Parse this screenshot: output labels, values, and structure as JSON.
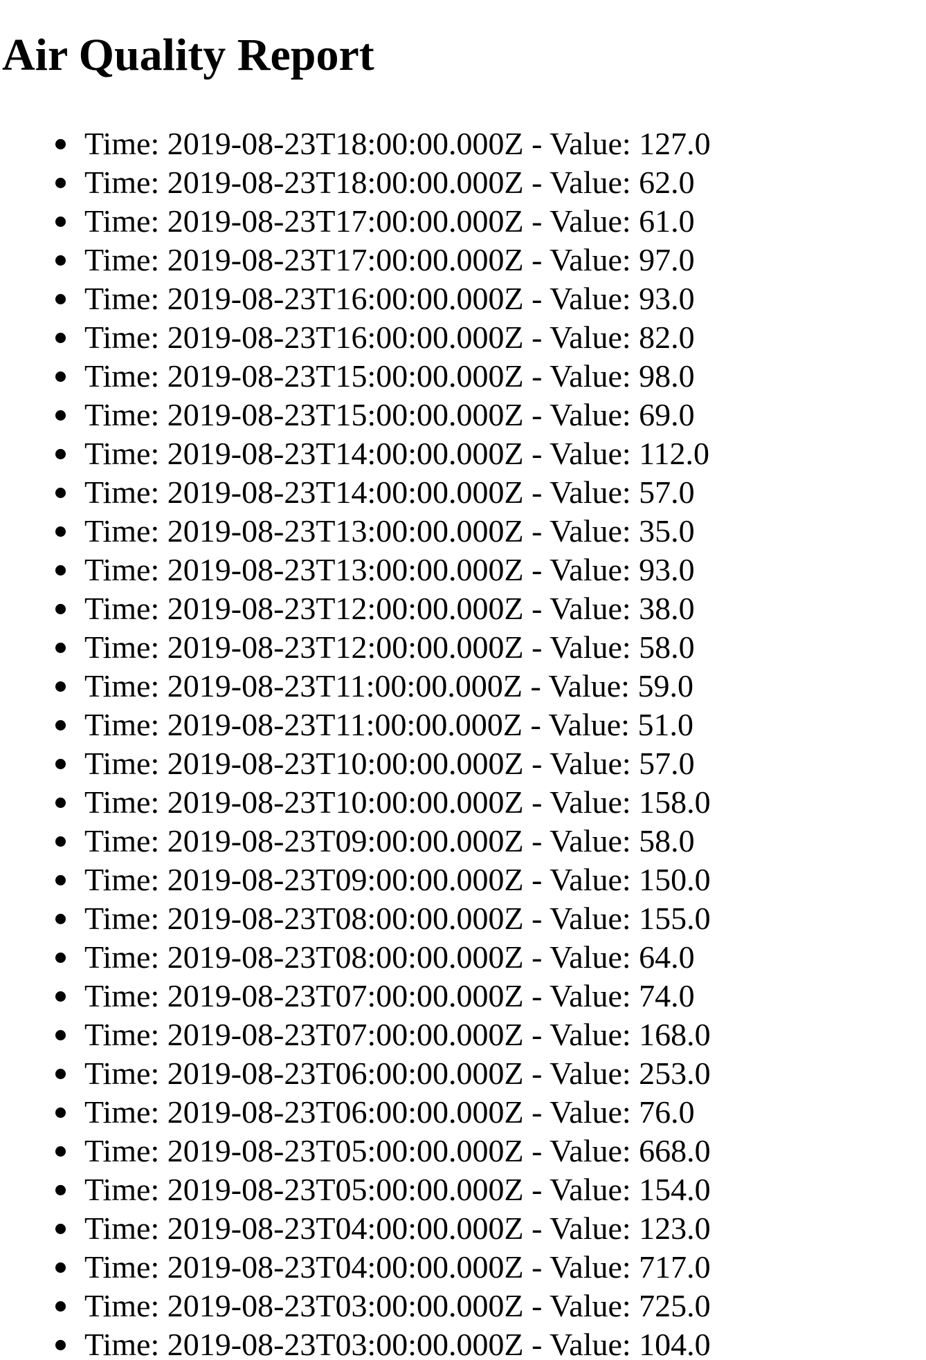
{
  "page_title": "Air Quality Report",
  "labels": {
    "time_prefix": "Time:",
    "value_prefix": "Value:",
    "separator": "-"
  },
  "readings": [
    {
      "time": "2019-08-23T18:00:00.000Z",
      "value": "127.0"
    },
    {
      "time": "2019-08-23T18:00:00.000Z",
      "value": "62.0"
    },
    {
      "time": "2019-08-23T17:00:00.000Z",
      "value": "61.0"
    },
    {
      "time": "2019-08-23T17:00:00.000Z",
      "value": "97.0"
    },
    {
      "time": "2019-08-23T16:00:00.000Z",
      "value": "93.0"
    },
    {
      "time": "2019-08-23T16:00:00.000Z",
      "value": "82.0"
    },
    {
      "time": "2019-08-23T15:00:00.000Z",
      "value": "98.0"
    },
    {
      "time": "2019-08-23T15:00:00.000Z",
      "value": "69.0"
    },
    {
      "time": "2019-08-23T14:00:00.000Z",
      "value": "112.0"
    },
    {
      "time": "2019-08-23T14:00:00.000Z",
      "value": "57.0"
    },
    {
      "time": "2019-08-23T13:00:00.000Z",
      "value": "35.0"
    },
    {
      "time": "2019-08-23T13:00:00.000Z",
      "value": "93.0"
    },
    {
      "time": "2019-08-23T12:00:00.000Z",
      "value": "38.0"
    },
    {
      "time": "2019-08-23T12:00:00.000Z",
      "value": "58.0"
    },
    {
      "time": "2019-08-23T11:00:00.000Z",
      "value": "59.0"
    },
    {
      "time": "2019-08-23T11:00:00.000Z",
      "value": "51.0"
    },
    {
      "time": "2019-08-23T10:00:00.000Z",
      "value": "57.0"
    },
    {
      "time": "2019-08-23T10:00:00.000Z",
      "value": "158.0"
    },
    {
      "time": "2019-08-23T09:00:00.000Z",
      "value": "58.0"
    },
    {
      "time": "2019-08-23T09:00:00.000Z",
      "value": "150.0"
    },
    {
      "time": "2019-08-23T08:00:00.000Z",
      "value": "155.0"
    },
    {
      "time": "2019-08-23T08:00:00.000Z",
      "value": "64.0"
    },
    {
      "time": "2019-08-23T07:00:00.000Z",
      "value": "74.0"
    },
    {
      "time": "2019-08-23T07:00:00.000Z",
      "value": "168.0"
    },
    {
      "time": "2019-08-23T06:00:00.000Z",
      "value": "253.0"
    },
    {
      "time": "2019-08-23T06:00:00.000Z",
      "value": "76.0"
    },
    {
      "time": "2019-08-23T05:00:00.000Z",
      "value": "668.0"
    },
    {
      "time": "2019-08-23T05:00:00.000Z",
      "value": "154.0"
    },
    {
      "time": "2019-08-23T04:00:00.000Z",
      "value": "123.0"
    },
    {
      "time": "2019-08-23T04:00:00.000Z",
      "value": "717.0"
    },
    {
      "time": "2019-08-23T03:00:00.000Z",
      "value": "725.0"
    },
    {
      "time": "2019-08-23T03:00:00.000Z",
      "value": "104.0"
    }
  ]
}
